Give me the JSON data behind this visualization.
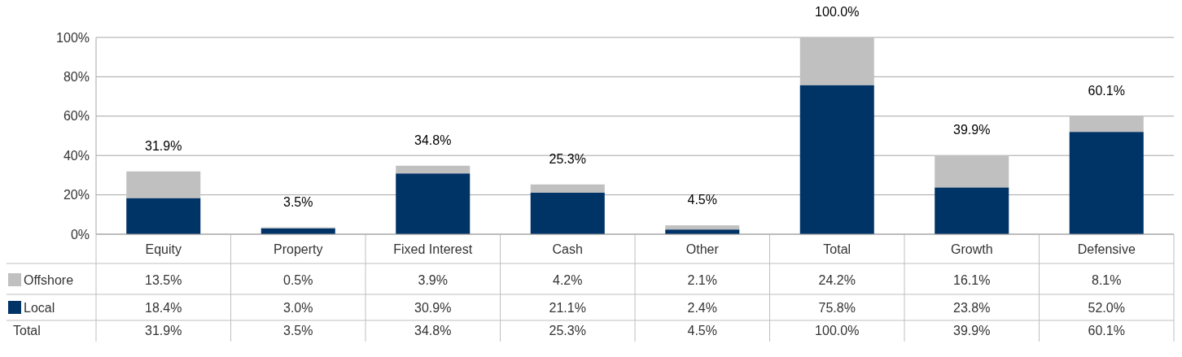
{
  "chart_data": {
    "type": "bar",
    "stacked": true,
    "categories": [
      "Equity",
      "Property",
      "Fixed Interest",
      "Cash",
      "Other",
      "Total",
      "Growth",
      "Defensive"
    ],
    "series": [
      {
        "name": "Local",
        "color": "#003366",
        "values": [
          18.4,
          3.0,
          30.9,
          21.1,
          2.4,
          75.8,
          23.8,
          52.0
        ],
        "value_labels": [
          "18.4%",
          "3.0%",
          "30.9%",
          "21.1%",
          "2.4%",
          "75.8%",
          "23.8%",
          "52.0%"
        ]
      },
      {
        "name": "Offshore",
        "color": "#c0c0c0",
        "values": [
          13.5,
          0.5,
          3.9,
          4.2,
          2.1,
          24.2,
          16.1,
          8.1
        ],
        "value_labels": [
          "13.5%",
          "0.5%",
          "3.9%",
          "4.2%",
          "2.1%",
          "24.2%",
          "16.1%",
          "8.1%"
        ]
      }
    ],
    "totals": [
      "31.9%",
      "3.5%",
      "34.8%",
      "25.3%",
      "4.5%",
      "100.0%",
      "39.9%",
      "60.1%"
    ],
    "annotations": [
      "Total"
    ],
    "ylim": [
      0,
      100
    ],
    "yticks": [
      {
        "value": 0,
        "label": "0%"
      },
      {
        "value": 20,
        "label": "20%"
      },
      {
        "value": 40,
        "label": "40%"
      },
      {
        "value": 60,
        "label": "60%"
      },
      {
        "value": 80,
        "label": "80%"
      },
      {
        "value": 100,
        "label": "100%"
      }
    ],
    "grid": "y",
    "legend": "bottom"
  }
}
